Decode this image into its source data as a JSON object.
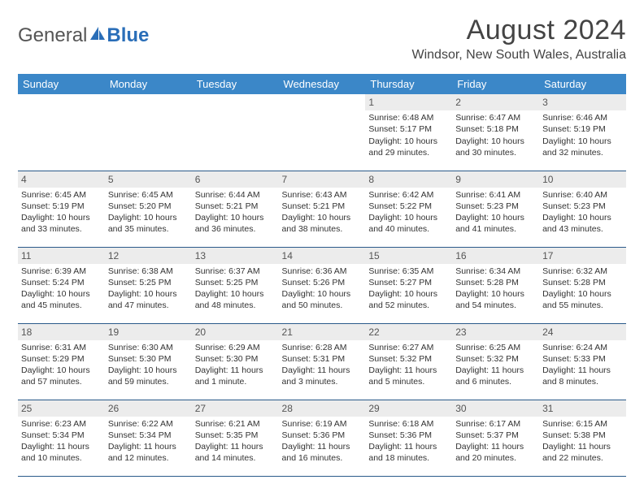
{
  "brand": {
    "part1": "General",
    "part2": "Blue"
  },
  "title": "August 2024",
  "location": "Windsor, New South Wales, Australia",
  "colors": {
    "header_bg": "#3b87c8",
    "header_text": "#ffffff",
    "daynum_bg": "#ececec",
    "row_border": "#2a5a8a",
    "logo_blue": "#2a6eb8",
    "text": "#333333"
  },
  "fonts": {
    "title_size": 34,
    "location_size": 16,
    "th_size": 13,
    "cell_size": 10.5
  },
  "daysOfWeek": [
    "Sunday",
    "Monday",
    "Tuesday",
    "Wednesday",
    "Thursday",
    "Friday",
    "Saturday"
  ],
  "weeks": [
    [
      null,
      null,
      null,
      null,
      {
        "n": "1",
        "sr": "Sunrise: 6:48 AM",
        "ss": "Sunset: 5:17 PM",
        "d1": "Daylight: 10 hours",
        "d2": "and 29 minutes."
      },
      {
        "n": "2",
        "sr": "Sunrise: 6:47 AM",
        "ss": "Sunset: 5:18 PM",
        "d1": "Daylight: 10 hours",
        "d2": "and 30 minutes."
      },
      {
        "n": "3",
        "sr": "Sunrise: 6:46 AM",
        "ss": "Sunset: 5:19 PM",
        "d1": "Daylight: 10 hours",
        "d2": "and 32 minutes."
      }
    ],
    [
      {
        "n": "4",
        "sr": "Sunrise: 6:45 AM",
        "ss": "Sunset: 5:19 PM",
        "d1": "Daylight: 10 hours",
        "d2": "and 33 minutes."
      },
      {
        "n": "5",
        "sr": "Sunrise: 6:45 AM",
        "ss": "Sunset: 5:20 PM",
        "d1": "Daylight: 10 hours",
        "d2": "and 35 minutes."
      },
      {
        "n": "6",
        "sr": "Sunrise: 6:44 AM",
        "ss": "Sunset: 5:21 PM",
        "d1": "Daylight: 10 hours",
        "d2": "and 36 minutes."
      },
      {
        "n": "7",
        "sr": "Sunrise: 6:43 AM",
        "ss": "Sunset: 5:21 PM",
        "d1": "Daylight: 10 hours",
        "d2": "and 38 minutes."
      },
      {
        "n": "8",
        "sr": "Sunrise: 6:42 AM",
        "ss": "Sunset: 5:22 PM",
        "d1": "Daylight: 10 hours",
        "d2": "and 40 minutes."
      },
      {
        "n": "9",
        "sr": "Sunrise: 6:41 AM",
        "ss": "Sunset: 5:23 PM",
        "d1": "Daylight: 10 hours",
        "d2": "and 41 minutes."
      },
      {
        "n": "10",
        "sr": "Sunrise: 6:40 AM",
        "ss": "Sunset: 5:23 PM",
        "d1": "Daylight: 10 hours",
        "d2": "and 43 minutes."
      }
    ],
    [
      {
        "n": "11",
        "sr": "Sunrise: 6:39 AM",
        "ss": "Sunset: 5:24 PM",
        "d1": "Daylight: 10 hours",
        "d2": "and 45 minutes."
      },
      {
        "n": "12",
        "sr": "Sunrise: 6:38 AM",
        "ss": "Sunset: 5:25 PM",
        "d1": "Daylight: 10 hours",
        "d2": "and 47 minutes."
      },
      {
        "n": "13",
        "sr": "Sunrise: 6:37 AM",
        "ss": "Sunset: 5:25 PM",
        "d1": "Daylight: 10 hours",
        "d2": "and 48 minutes."
      },
      {
        "n": "14",
        "sr": "Sunrise: 6:36 AM",
        "ss": "Sunset: 5:26 PM",
        "d1": "Daylight: 10 hours",
        "d2": "and 50 minutes."
      },
      {
        "n": "15",
        "sr": "Sunrise: 6:35 AM",
        "ss": "Sunset: 5:27 PM",
        "d1": "Daylight: 10 hours",
        "d2": "and 52 minutes."
      },
      {
        "n": "16",
        "sr": "Sunrise: 6:34 AM",
        "ss": "Sunset: 5:28 PM",
        "d1": "Daylight: 10 hours",
        "d2": "and 54 minutes."
      },
      {
        "n": "17",
        "sr": "Sunrise: 6:32 AM",
        "ss": "Sunset: 5:28 PM",
        "d1": "Daylight: 10 hours",
        "d2": "and 55 minutes."
      }
    ],
    [
      {
        "n": "18",
        "sr": "Sunrise: 6:31 AM",
        "ss": "Sunset: 5:29 PM",
        "d1": "Daylight: 10 hours",
        "d2": "and 57 minutes."
      },
      {
        "n": "19",
        "sr": "Sunrise: 6:30 AM",
        "ss": "Sunset: 5:30 PM",
        "d1": "Daylight: 10 hours",
        "d2": "and 59 minutes."
      },
      {
        "n": "20",
        "sr": "Sunrise: 6:29 AM",
        "ss": "Sunset: 5:30 PM",
        "d1": "Daylight: 11 hours",
        "d2": "and 1 minute."
      },
      {
        "n": "21",
        "sr": "Sunrise: 6:28 AM",
        "ss": "Sunset: 5:31 PM",
        "d1": "Daylight: 11 hours",
        "d2": "and 3 minutes."
      },
      {
        "n": "22",
        "sr": "Sunrise: 6:27 AM",
        "ss": "Sunset: 5:32 PM",
        "d1": "Daylight: 11 hours",
        "d2": "and 5 minutes."
      },
      {
        "n": "23",
        "sr": "Sunrise: 6:25 AM",
        "ss": "Sunset: 5:32 PM",
        "d1": "Daylight: 11 hours",
        "d2": "and 6 minutes."
      },
      {
        "n": "24",
        "sr": "Sunrise: 6:24 AM",
        "ss": "Sunset: 5:33 PM",
        "d1": "Daylight: 11 hours",
        "d2": "and 8 minutes."
      }
    ],
    [
      {
        "n": "25",
        "sr": "Sunrise: 6:23 AM",
        "ss": "Sunset: 5:34 PM",
        "d1": "Daylight: 11 hours",
        "d2": "and 10 minutes."
      },
      {
        "n": "26",
        "sr": "Sunrise: 6:22 AM",
        "ss": "Sunset: 5:34 PM",
        "d1": "Daylight: 11 hours",
        "d2": "and 12 minutes."
      },
      {
        "n": "27",
        "sr": "Sunrise: 6:21 AM",
        "ss": "Sunset: 5:35 PM",
        "d1": "Daylight: 11 hours",
        "d2": "and 14 minutes."
      },
      {
        "n": "28",
        "sr": "Sunrise: 6:19 AM",
        "ss": "Sunset: 5:36 PM",
        "d1": "Daylight: 11 hours",
        "d2": "and 16 minutes."
      },
      {
        "n": "29",
        "sr": "Sunrise: 6:18 AM",
        "ss": "Sunset: 5:36 PM",
        "d1": "Daylight: 11 hours",
        "d2": "and 18 minutes."
      },
      {
        "n": "30",
        "sr": "Sunrise: 6:17 AM",
        "ss": "Sunset: 5:37 PM",
        "d1": "Daylight: 11 hours",
        "d2": "and 20 minutes."
      },
      {
        "n": "31",
        "sr": "Sunrise: 6:15 AM",
        "ss": "Sunset: 5:38 PM",
        "d1": "Daylight: 11 hours",
        "d2": "and 22 minutes."
      }
    ]
  ]
}
